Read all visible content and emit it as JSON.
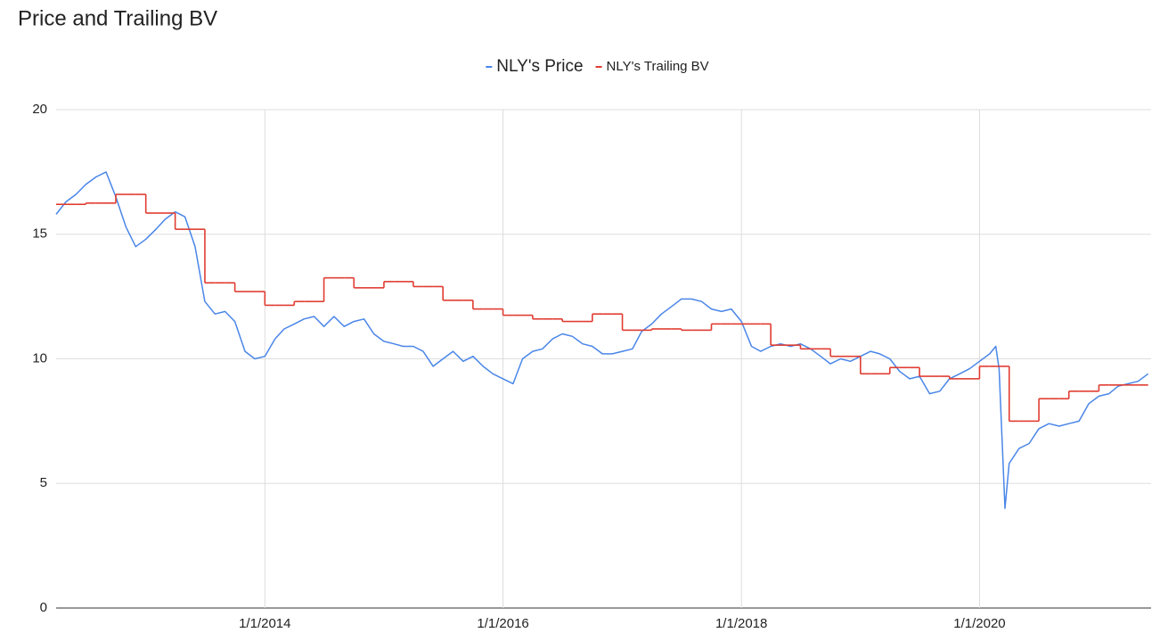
{
  "chart_data": {
    "type": "line",
    "title": "Price and Trailing BV",
    "x": [
      "4/1/2012",
      "5/1/2012",
      "6/1/2012",
      "7/1/2012",
      "8/1/2012",
      "9/1/2012",
      "10/1/2012",
      "11/1/2012",
      "12/1/2012",
      "1/1/2013",
      "2/1/2013",
      "3/1/2013",
      "4/1/2013",
      "5/1/2013",
      "6/1/2013",
      "7/1/2013",
      "8/1/2013",
      "9/1/2013",
      "10/1/2013",
      "11/1/2013",
      "12/1/2013",
      "1/1/2014",
      "2/1/2014",
      "3/1/2014",
      "4/1/2014",
      "5/1/2014",
      "6/1/2014",
      "7/1/2014",
      "8/1/2014",
      "9/1/2014",
      "10/1/2014",
      "11/1/2014",
      "12/1/2014",
      "1/1/2015",
      "2/1/2015",
      "3/1/2015",
      "4/1/2015",
      "5/1/2015",
      "6/1/2015",
      "7/1/2015",
      "8/1/2015",
      "9/1/2015",
      "10/1/2015",
      "11/1/2015",
      "12/1/2015",
      "1/1/2016",
      "2/1/2016",
      "3/1/2016",
      "4/1/2016",
      "5/1/2016",
      "6/1/2016",
      "7/1/2016",
      "8/1/2016",
      "9/1/2016",
      "10/1/2016",
      "11/1/2016",
      "12/1/2016",
      "1/1/2017",
      "2/1/2017",
      "3/1/2017",
      "4/1/2017",
      "5/1/2017",
      "6/1/2017",
      "7/1/2017",
      "8/1/2017",
      "9/1/2017",
      "10/1/2017",
      "11/1/2017",
      "12/1/2017",
      "1/1/2018",
      "2/1/2018",
      "3/1/2018",
      "4/1/2018",
      "5/1/2018",
      "6/1/2018",
      "7/1/2018",
      "8/1/2018",
      "9/1/2018",
      "10/1/2018",
      "11/1/2018",
      "12/1/2018",
      "1/1/2019",
      "2/1/2019",
      "3/1/2019",
      "4/1/2019",
      "5/1/2019",
      "6/1/2019",
      "7/1/2019",
      "8/1/2019",
      "9/1/2019",
      "10/1/2019",
      "11/1/2019",
      "12/1/2019",
      "1/1/2020",
      "2/1/2020",
      "2/20/2020",
      "3/1/2020",
      "3/19/2020",
      "4/1/2020",
      "5/1/2020",
      "6/1/2020",
      "7/1/2020",
      "8/1/2020",
      "9/1/2020",
      "10/1/2020",
      "11/1/2020",
      "12/1/2020",
      "1/1/2021",
      "2/1/2021",
      "3/1/2021",
      "4/1/2021",
      "5/1/2021",
      "6/1/2021"
    ],
    "series": [
      {
        "name": "NLY's Price",
        "color": "#4a86e8",
        "step": false,
        "values": [
          15.8,
          16.3,
          16.6,
          17.0,
          17.3,
          17.5,
          16.5,
          15.3,
          14.5,
          14.8,
          15.2,
          15.6,
          15.9,
          15.7,
          14.5,
          12.3,
          11.8,
          11.9,
          11.5,
          10.3,
          10.0,
          10.1,
          10.8,
          11.2,
          11.4,
          11.6,
          11.7,
          11.3,
          11.7,
          11.3,
          11.5,
          11.6,
          11.0,
          10.7,
          10.6,
          10.5,
          10.5,
          10.3,
          9.7,
          10.0,
          10.3,
          9.9,
          10.1,
          9.7,
          9.4,
          9.2,
          9.0,
          10.0,
          10.3,
          10.4,
          10.8,
          11.0,
          10.9,
          10.6,
          10.5,
          10.2,
          10.2,
          10.3,
          10.4,
          11.1,
          11.4,
          11.8,
          12.1,
          12.4,
          12.4,
          12.3,
          12.0,
          11.9,
          12.0,
          11.5,
          10.5,
          10.3,
          10.5,
          10.6,
          10.5,
          10.6,
          10.4,
          10.1,
          9.8,
          10.0,
          9.9,
          10.1,
          10.3,
          10.2,
          10.0,
          9.5,
          9.2,
          9.3,
          8.6,
          8.7,
          9.2,
          9.4,
          9.6,
          9.9,
          10.2,
          10.5,
          9.6,
          4.0,
          5.8,
          6.4,
          6.6,
          7.2,
          7.4,
          7.3,
          7.4,
          7.5,
          8.2,
          8.5,
          8.6,
          8.9,
          9.0,
          9.1,
          9.4
        ]
      },
      {
        "name": "NLY's Trailing BV",
        "color": "#e03c31",
        "step": true,
        "values": [
          16.2,
          16.2,
          16.2,
          16.25,
          16.25,
          16.25,
          16.6,
          16.6,
          16.6,
          15.85,
          15.85,
          15.85,
          15.2,
          15.2,
          15.2,
          13.05,
          13.05,
          13.05,
          12.7,
          12.7,
          12.7,
          12.15,
          12.15,
          12.15,
          12.3,
          12.3,
          12.3,
          13.25,
          13.25,
          13.25,
          12.85,
          12.85,
          12.85,
          13.1,
          13.1,
          13.1,
          12.9,
          12.9,
          12.9,
          12.35,
          12.35,
          12.35,
          12.0,
          12.0,
          12.0,
          11.75,
          11.75,
          11.75,
          11.6,
          11.6,
          11.6,
          11.5,
          11.5,
          11.5,
          11.8,
          11.8,
          11.8,
          11.15,
          11.15,
          11.15,
          11.2,
          11.2,
          11.2,
          11.15,
          11.15,
          11.15,
          11.4,
          11.4,
          11.4,
          11.4,
          11.4,
          11.4,
          10.55,
          10.55,
          10.55,
          10.4,
          10.4,
          10.4,
          10.1,
          10.1,
          10.1,
          9.4,
          9.4,
          9.4,
          9.65,
          9.65,
          9.65,
          9.3,
          9.3,
          9.3,
          9.2,
          9.2,
          9.2,
          9.7,
          9.7,
          9.7,
          9.7,
          9.7,
          7.5,
          7.5,
          7.5,
          8.4,
          8.4,
          8.4,
          8.7,
          8.7,
          8.7,
          8.95,
          8.95,
          8.95,
          8.95,
          8.95,
          8.95
        ]
      }
    ],
    "xlim": [
      "4/1/2012",
      "6/10/2021"
    ],
    "xticks": [
      "1/1/2014",
      "1/1/2016",
      "1/1/2018",
      "1/1/2020"
    ],
    "ylim": [
      0,
      20
    ],
    "yticks": [
      0,
      5,
      10,
      15,
      20
    ],
    "grid": true,
    "legend": "top"
  }
}
